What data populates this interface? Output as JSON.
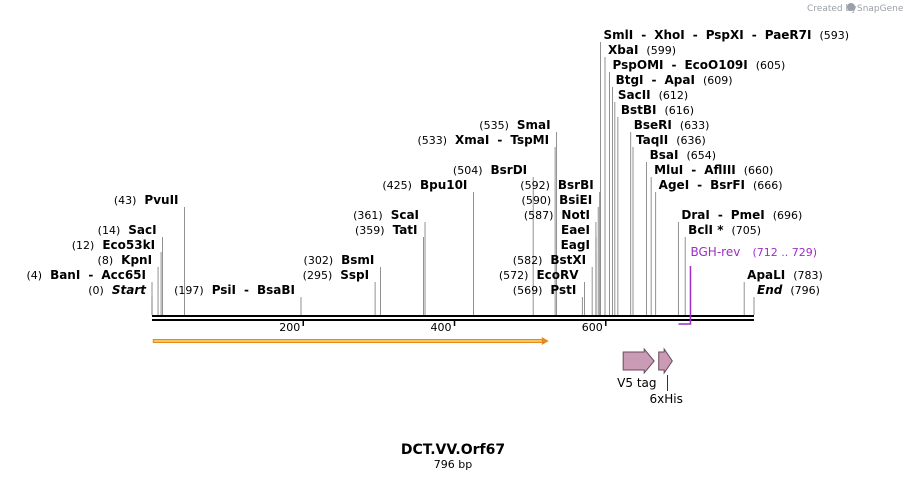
{
  "brand": {
    "created_by": "Created by",
    "name": "SnapGene"
  },
  "title": "DCT.VV.Orf67",
  "length_label": "796 bp",
  "sequence_length": 796,
  "axis_ticks": [
    {
      "position": 200,
      "label": "200"
    },
    {
      "position": 400,
      "label": "400"
    },
    {
      "position": 600,
      "label": "600"
    }
  ],
  "sites": [
    {
      "label_pos": 0,
      "row": 0,
      "pos": "(0)",
      "names": [
        "Start"
      ],
      "italic": true
    },
    {
      "label_pos": 0,
      "row": 1,
      "pos": "(4)",
      "names": [
        "BanI",
        "Acc65I"
      ]
    },
    {
      "label_pos": 8,
      "row": 2,
      "pos": "(8)",
      "names": [
        "KpnI"
      ]
    },
    {
      "label_pos": 12,
      "row": 3,
      "pos": "(12)",
      "names": [
        "Eco53kI"
      ]
    },
    {
      "label_pos": 14,
      "row": 4,
      "pos": "(14)",
      "names": [
        "SacI"
      ]
    },
    {
      "label_pos": 43,
      "row": 6,
      "pos": "(43)",
      "names": [
        "PvuII"
      ]
    },
    {
      "label_pos": 197,
      "row": 0,
      "pos": "(197)",
      "names": [
        "PsiI",
        "BsaBI"
      ]
    },
    {
      "label_pos": 295,
      "row": 1,
      "pos": "(295)",
      "names": [
        "SspI"
      ]
    },
    {
      "label_pos": 302,
      "row": 2,
      "pos": "(302)",
      "names": [
        "BsmI"
      ]
    },
    {
      "label_pos": 359,
      "row": 4,
      "pos": "(359)",
      "names": [
        "TatI"
      ]
    },
    {
      "label_pos": 361,
      "row": 5,
      "pos": "(361)",
      "names": [
        "ScaI"
      ]
    },
    {
      "label_pos": 425,
      "row": 7,
      "pos": "(425)",
      "names": [
        "Bpu10I"
      ]
    },
    {
      "label_pos": 504,
      "row": 8,
      "pos": "(504)",
      "names": [
        "BsrDI"
      ]
    },
    {
      "label_pos": 533,
      "row": 10,
      "pos": "(533)",
      "names": [
        "XmaI",
        "TspMI"
      ]
    },
    {
      "label_pos": 535,
      "row": 11,
      "pos": "(535)",
      "names": [
        "SmaI"
      ]
    },
    {
      "label_pos": 569,
      "row": 0,
      "pos": "(569)",
      "names": [
        "PstI"
      ]
    },
    {
      "label_pos": 572,
      "row": 1,
      "pos": "(572)",
      "names": [
        "EcoRV"
      ]
    },
    {
      "label_pos": 582,
      "row": 2,
      "pos": "(582)",
      "names": [
        "BstXI"
      ]
    },
    {
      "label_pos": 587,
      "row": 3,
      "names": [
        "EagI"
      ]
    },
    {
      "label_pos": 587,
      "row": 4,
      "names": [
        "EaeI"
      ]
    },
    {
      "label_pos": 587,
      "row": 5,
      "pos": "(587)",
      "names": [
        "NotI"
      ]
    },
    {
      "label_pos": 590,
      "row": 6,
      "pos": "(590)",
      "names": [
        "BsiEI"
      ]
    },
    {
      "label_pos": 592,
      "row": 7,
      "pos": "(592)",
      "names": [
        "BsrBI"
      ]
    },
    {
      "label_pos": 593,
      "row": 17,
      "pos": "(593)",
      "names": [
        "SmlI",
        "XhoI",
        "PspXI",
        "PaeR7I"
      ],
      "pos_right": true
    },
    {
      "label_pos": 599,
      "row": 16,
      "pos": "(599)",
      "names": [
        "XbaI"
      ],
      "pos_right": true
    },
    {
      "label_pos": 605,
      "row": 15,
      "pos": "(605)",
      "names": [
        "PspOMI",
        "EcoO109I"
      ],
      "pos_right": true
    },
    {
      "label_pos": 609,
      "row": 14,
      "pos": "(609)",
      "names": [
        "BtgI",
        "ApaI"
      ],
      "pos_right": true
    },
    {
      "label_pos": 612,
      "row": 13,
      "pos": "(612)",
      "names": [
        "SacII"
      ],
      "pos_right": true
    },
    {
      "label_pos": 616,
      "row": 12,
      "pos": "(616)",
      "names": [
        "BstBI"
      ],
      "pos_right": true
    },
    {
      "label_pos": 633,
      "row": 11,
      "pos": "(633)",
      "names": [
        "BseRI"
      ],
      "pos_right": true
    },
    {
      "label_pos": 636,
      "row": 10,
      "pos": "(636)",
      "names": [
        "TaqII"
      ],
      "pos_right": true
    },
    {
      "label_pos": 654,
      "row": 9,
      "pos": "(654)",
      "names": [
        "BsaI"
      ],
      "pos_right": true
    },
    {
      "label_pos": 660,
      "row": 8,
      "pos": "(660)",
      "names": [
        "MluI",
        "AflIII"
      ],
      "pos_right": true
    },
    {
      "label_pos": 666,
      "row": 7,
      "pos": "(666)",
      "names": [
        "AgeI",
        "BsrFI"
      ],
      "pos_right": true
    },
    {
      "label_pos": 696,
      "row": 5,
      "pos": "(696)",
      "names": [
        "DraI",
        "PmeI"
      ],
      "pos_right": true
    },
    {
      "label_pos": 705,
      "row": 4,
      "pos": "(705)",
      "names": [
        "BclI *"
      ],
      "pos_right": true
    },
    {
      "label_pos": 783,
      "row": 1,
      "pos": "(783)",
      "names": [
        "ApaLI"
      ],
      "pos_right": true
    },
    {
      "label_pos": 796,
      "row": 0,
      "pos": "(796)",
      "names": [
        "End"
      ],
      "italic": true,
      "pos_right": true
    }
  ],
  "primer": {
    "name": "BGH-rev",
    "range": "(712 .. 729)",
    "start": 712,
    "end": 729,
    "color": "#9c2fc5"
  },
  "features": [
    {
      "name": "V5 tag",
      "start": 623,
      "end": 664,
      "color": "#c99bb5",
      "label_row": 0
    },
    {
      "name": "6xHis",
      "start": 670,
      "end": 688,
      "color": "#c99bb5",
      "label_row": 1
    }
  ],
  "orf": {
    "start": 1,
    "end": 522,
    "color": "#f6c45a",
    "stroke": "#e58a1e"
  }
}
